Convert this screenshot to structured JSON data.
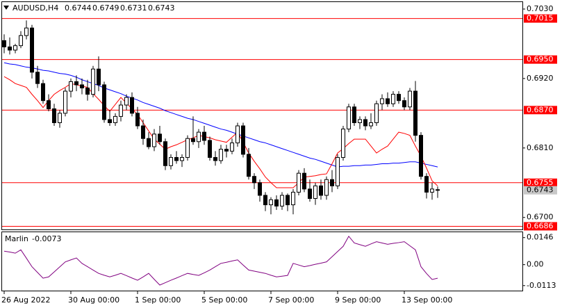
{
  "chart_data": [
    {
      "type": "candlestick",
      "title": "AUDUSD,H4",
      "categories": [
        "26 Aug 2022",
        null,
        null,
        null,
        null,
        null,
        null,
        null,
        null,
        null,
        null,
        null,
        "30 Aug 00:00",
        null,
        null,
        null,
        null,
        null,
        null,
        null,
        null,
        null,
        null,
        null,
        "1 Sep 00:00",
        null,
        null,
        null,
        null,
        null,
        null,
        null,
        null,
        null,
        null,
        null,
        "5 Sep 00:00",
        null,
        null,
        null,
        null,
        null,
        null,
        null,
        null,
        null,
        null,
        null,
        "7 Sep 00:00",
        null,
        null,
        null,
        null,
        null,
        null,
        null,
        null,
        null,
        null,
        null,
        "9 Sep 00:00",
        null,
        null,
        null,
        null,
        null,
        null,
        null,
        null,
        null,
        null,
        null,
        "13 Sep 00:00",
        null,
        null,
        null,
        null,
        null,
        null
      ],
      "open": [
        0.698,
        0.697,
        0.6965,
        0.6972,
        0.6988,
        0.7,
        0.693,
        0.6912,
        0.6885,
        0.6872,
        0.685,
        0.6865,
        0.69,
        0.6915,
        0.691,
        0.6905,
        0.6895,
        0.6935,
        0.691,
        0.6855,
        0.685,
        0.686,
        0.6878,
        0.689,
        0.6865,
        0.6845,
        0.6825,
        0.6812,
        0.6832,
        0.682,
        0.6782,
        0.6795,
        0.679,
        0.6795,
        0.6825,
        0.682,
        0.6835,
        0.6822,
        0.6795,
        0.679,
        0.6808,
        0.6805,
        0.6818,
        0.6845,
        0.68,
        0.6765,
        0.6755,
        0.6735,
        0.672,
        0.6728,
        0.6718,
        0.6735,
        0.672,
        0.674,
        0.677,
        0.6745,
        0.673,
        0.675,
        0.6735,
        0.676,
        0.675,
        0.6795,
        0.684,
        0.6875,
        0.685,
        0.6855,
        0.6845,
        0.685,
        0.688,
        0.6888,
        0.688,
        0.6895,
        0.6885,
        0.6875,
        0.69,
        0.683,
        0.6765,
        0.674,
        0.6744
      ],
      "high": [
        0.699,
        0.6985,
        0.6975,
        0.6995,
        0.7012,
        0.7005,
        0.694,
        0.6918,
        0.6895,
        0.688,
        0.687,
        0.6905,
        0.692,
        0.6925,
        0.692,
        0.6918,
        0.694,
        0.6955,
        0.6915,
        0.687,
        0.6865,
        0.6885,
        0.6895,
        0.6898,
        0.6875,
        0.6855,
        0.6835,
        0.684,
        0.6845,
        0.6825,
        0.68,
        0.6805,
        0.68,
        0.683,
        0.686,
        0.684,
        0.6845,
        0.6828,
        0.6805,
        0.6815,
        0.6815,
        0.6825,
        0.685,
        0.685,
        0.681,
        0.677,
        0.676,
        0.674,
        0.6732,
        0.6735,
        0.674,
        0.6738,
        0.6745,
        0.6775,
        0.6778,
        0.676,
        0.6755,
        0.676,
        0.6765,
        0.6775,
        0.68,
        0.6845,
        0.688,
        0.688,
        0.686,
        0.686,
        0.6865,
        0.6885,
        0.6895,
        0.6898,
        0.69,
        0.69,
        0.689,
        0.6905,
        0.6916,
        0.6835,
        0.677,
        0.6755,
        0.6749
      ],
      "low": [
        0.696,
        0.6958,
        0.696,
        0.6968,
        0.6982,
        0.692,
        0.6905,
        0.688,
        0.6868,
        0.6845,
        0.6842,
        0.686,
        0.689,
        0.69,
        0.6895,
        0.6885,
        0.689,
        0.69,
        0.685,
        0.6845,
        0.6845,
        0.6852,
        0.687,
        0.686,
        0.684,
        0.6815,
        0.6808,
        0.6805,
        0.6815,
        0.6775,
        0.6776,
        0.6785,
        0.678,
        0.679,
        0.6815,
        0.681,
        0.6815,
        0.679,
        0.6782,
        0.6785,
        0.6795,
        0.68,
        0.6812,
        0.6795,
        0.676,
        0.6745,
        0.6725,
        0.671,
        0.6705,
        0.6712,
        0.6712,
        0.671,
        0.6705,
        0.6735,
        0.674,
        0.6725,
        0.672,
        0.6728,
        0.6728,
        0.674,
        0.6745,
        0.679,
        0.6835,
        0.6845,
        0.684,
        0.6838,
        0.684,
        0.6845,
        0.687,
        0.6875,
        0.6875,
        0.688,
        0.687,
        0.687,
        0.682,
        0.676,
        0.673,
        0.6728,
        0.6731
      ],
      "close": [
        0.697,
        0.6965,
        0.6972,
        0.6988,
        0.7,
        0.693,
        0.6912,
        0.6885,
        0.6872,
        0.685,
        0.6865,
        0.69,
        0.6915,
        0.691,
        0.6905,
        0.6895,
        0.6935,
        0.691,
        0.6855,
        0.685,
        0.686,
        0.6878,
        0.689,
        0.6865,
        0.6845,
        0.6825,
        0.6812,
        0.6832,
        0.682,
        0.6782,
        0.6795,
        0.679,
        0.6795,
        0.6825,
        0.682,
        0.6835,
        0.6822,
        0.6795,
        0.679,
        0.6808,
        0.6805,
        0.6818,
        0.6845,
        0.68,
        0.6765,
        0.6755,
        0.6735,
        0.672,
        0.6728,
        0.6718,
        0.6735,
        0.672,
        0.674,
        0.677,
        0.6745,
        0.673,
        0.675,
        0.6735,
        0.676,
        0.675,
        0.6795,
        0.684,
        0.6875,
        0.685,
        0.6855,
        0.6845,
        0.685,
        0.688,
        0.6888,
        0.688,
        0.6895,
        0.6885,
        0.6875,
        0.69,
        0.683,
        0.6765,
        0.674,
        0.6745,
        0.6743
      ],
      "up_color": "#ffffff",
      "down_color": "#000000",
      "lines": [
        {
          "color": "#0000ff",
          "values": [
            0.6945,
            0.6943,
            0.6942,
            0.694,
            0.6938,
            0.6937,
            0.6935,
            0.6933,
            0.6932,
            0.693,
            0.6928,
            0.6927,
            0.6925,
            0.6922,
            0.6918,
            0.6915,
            0.6912,
            0.6909,
            0.6905,
            0.6902,
            0.6899,
            0.6896,
            0.6892,
            0.6889,
            0.6886,
            0.6882,
            0.6879,
            0.6876,
            0.6873,
            0.6869,
            0.6866,
            0.6863,
            0.686,
            0.6857,
            0.6855,
            0.6852,
            0.6849,
            0.6846,
            0.6843,
            0.684,
            0.6838,
            0.6835,
            0.6832,
            0.6829,
            0.6826,
            0.6823,
            0.682,
            0.6818,
            0.6815,
            0.6812,
            0.6809,
            0.6806,
            0.6803,
            0.68,
            0.6797,
            0.6794,
            0.6792,
            0.6789,
            0.6786,
            0.6783,
            0.678,
            0.6781,
            0.6781,
            0.6782,
            0.6782,
            0.6783,
            0.6783,
            0.6784,
            0.6785,
            0.6785,
            0.6786,
            0.6786,
            0.6787,
            0.6788,
            0.6788,
            0.6786,
            0.6784,
            0.6782,
            0.678
          ]
        },
        {
          "color": "#ff0000",
          "values": [
            0.6923,
            0.6918,
            0.6912,
            0.6909,
            0.6906,
            0.6895,
            0.6885,
            0.6874,
            0.6885,
            0.6895,
            0.6901,
            0.6906,
            0.6912,
            0.691,
            0.6908,
            0.6906,
            0.6896,
            0.6887,
            0.6877,
            0.6868,
            0.6879,
            0.689,
            0.6881,
            0.6872,
            0.6863,
            0.685,
            0.6837,
            0.6824,
            0.6816,
            0.6808,
            0.6812,
            0.6815,
            0.6819,
            0.6823,
            0.6826,
            0.683,
            0.6828,
            0.6826,
            0.6823,
            0.6821,
            0.6819,
            0.6827,
            0.6835,
            0.6819,
            0.6802,
            0.6789,
            0.6777,
            0.6764,
            0.6755,
            0.6747,
            0.6747,
            0.6747,
            0.6747,
            0.6755,
            0.6764,
            0.6765,
            0.6766,
            0.6768,
            0.6769,
            0.6785,
            0.6802,
            0.6809,
            0.6817,
            0.6824,
            0.6824,
            0.6824,
            0.6813,
            0.6802,
            0.6808,
            0.6813,
            0.6824,
            0.6835,
            0.6833,
            0.683,
            0.6813,
            0.6797,
            0.6778,
            0.6758,
            0.675
          ]
        }
      ],
      "levels": [
        0.7015,
        {
          "value": 0.695,
          "label": "0.6950"
        },
        {
          "value": 0.687,
          "label": "0.6870"
        },
        0.6755,
        0.6686
      ],
      "level_color": "#ff0000",
      "ylim": [
        0.6681,
        0.7041
      ],
      "yticks": [
        {
          "value": 0.703,
          "label": "0.7030"
        },
        {
          "value": 0.692,
          "label": "0.6920"
        },
        {
          "value": 0.681,
          "label": "0.6810"
        },
        {
          "value": 0.67,
          "label": "0.6700"
        }
      ]
    },
    {
      "type": "line",
      "title": "Marlin",
      "color": "#800080",
      "values": [
        0.0073,
        0.0068,
        0.0062,
        0.008,
        0.0035,
        -0.0011,
        -0.0042,
        -0.0073,
        -0.0066,
        -0.0039,
        -0.0012,
        0.0015,
        0.0026,
        0.0036,
        0.0007,
        -0.0011,
        -0.0029,
        -0.0047,
        -0.0057,
        -0.0066,
        -0.0057,
        -0.0047,
        -0.0059,
        -0.0072,
        -0.0084,
        -0.0066,
        -0.0047,
        -0.0079,
        -0.011,
        -0.0097,
        -0.0084,
        -0.0072,
        -0.0059,
        -0.0047,
        -0.0053,
        -0.0058,
        -0.0044,
        -0.0029,
        -0.0011,
        0.0007,
        0.0013,
        0.002,
        0.0026,
        -0.0002,
        -0.0029,
        -0.0035,
        -0.0041,
        -0.0047,
        -0.0057,
        -0.0066,
        -0.0062,
        -0.0058,
        0.0007,
        -0.0002,
        -0.0011,
        -0.0005,
        0.0002,
        0.0008,
        0.0015,
        0.0043,
        0.0071,
        0.0099,
        0.0153,
        0.0117,
        0.0108,
        0.0099,
        0.0112,
        0.0124,
        0.0117,
        0.011,
        0.0115,
        0.0119,
        0.0124,
        0.0102,
        0.008,
        -0.0011,
        -0.0048,
        -0.008,
        -0.0073
      ],
      "ylim": [
        -0.014,
        0.0175
      ],
      "yticks": [
        0.0146,
        {
          "value": 0,
          "label": "0.00"
        },
        -0.0113
      ]
    }
  ]
}
